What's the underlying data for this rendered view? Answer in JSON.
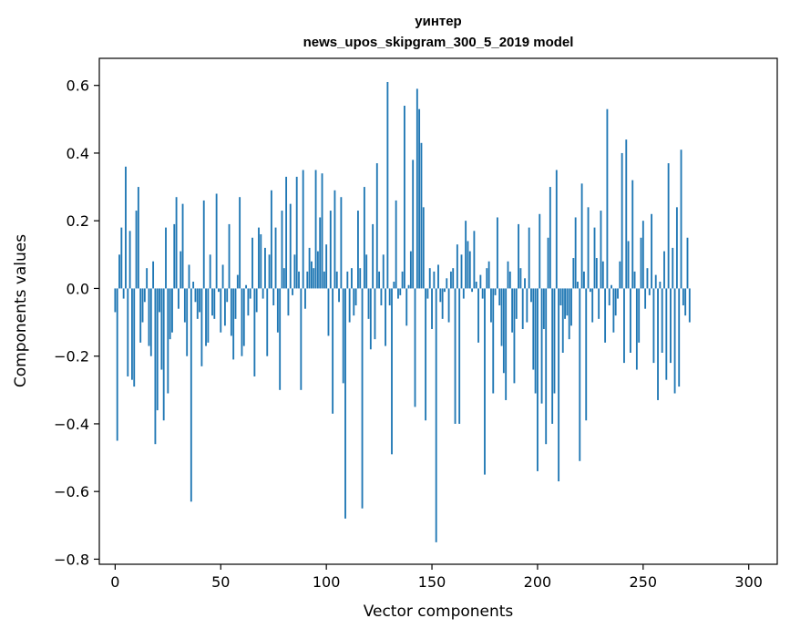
{
  "chart_data": {
    "type": "bar",
    "title_lines": [
      "уинтер",
      "news_upos_skipgram_300_5_2019 model"
    ],
    "xlabel": "Vector components",
    "ylabel": "Components values",
    "xlim": [
      -7.5,
      313.5
    ],
    "ylim": [
      -0.815,
      0.68
    ],
    "xticks": [
      0,
      50,
      100,
      150,
      200,
      250,
      300
    ],
    "yticks": [
      -0.8,
      -0.6,
      -0.4,
      -0.2,
      0.0,
      0.2,
      0.4,
      0.6
    ],
    "ytick_labels": [
      "−0.8",
      "−0.6",
      "−0.4",
      "−0.2",
      "0.0",
      "0.2",
      "0.4",
      "0.6"
    ],
    "xtick_labels": [
      "0",
      "50",
      "100",
      "150",
      "200",
      "250",
      "300"
    ],
    "bar_color": "#1f77b4",
    "values": [
      -0.07,
      -0.45,
      0.1,
      0.18,
      -0.03,
      0.36,
      -0.26,
      0.17,
      -0.27,
      -0.29,
      0.23,
      0.3,
      -0.16,
      -0.1,
      -0.04,
      0.06,
      -0.17,
      -0.2,
      0.08,
      -0.46,
      -0.36,
      -0.07,
      -0.24,
      -0.39,
      0.18,
      -0.31,
      -0.15,
      -0.13,
      0.19,
      0.27,
      -0.06,
      0.11,
      0.25,
      -0.1,
      -0.2,
      0.07,
      -0.63,
      0.02,
      -0.04,
      -0.09,
      -0.07,
      -0.23,
      0.26,
      -0.17,
      -0.16,
      0.1,
      -0.08,
      -0.09,
      0.28,
      -0.01,
      -0.13,
      0.07,
      -0.11,
      -0.04,
      0.19,
      -0.14,
      -0.21,
      -0.09,
      0.04,
      0.27,
      -0.2,
      -0.17,
      0.01,
      -0.08,
      -0.03,
      0.15,
      -0.26,
      -0.07,
      0.18,
      0.16,
      -0.03,
      0.12,
      -0.2,
      0.1,
      0.29,
      -0.05,
      0.18,
      -0.13,
      -0.3,
      0.23,
      0.06,
      0.33,
      -0.08,
      0.25,
      -0.02,
      0.1,
      0.33,
      0.05,
      -0.3,
      0.35,
      -0.06,
      0.05,
      0.12,
      0.08,
      0.06,
      0.35,
      0.11,
      0.21,
      0.34,
      0.05,
      0.13,
      -0.14,
      0.23,
      -0.37,
      0.29,
      0.05,
      -0.04,
      0.27,
      -0.28,
      -0.68,
      0.05,
      -0.1,
      0.06,
      -0.08,
      -0.05,
      0.23,
      0.06,
      -0.65,
      0.3,
      0.1,
      -0.09,
      -0.18,
      0.19,
      -0.15,
      0.37,
      0.05,
      -0.05,
      0.1,
      -0.17,
      0.61,
      -0.05,
      -0.49,
      0.02,
      0.26,
      -0.03,
      -0.02,
      0.05,
      0.54,
      -0.11,
      0.01,
      0.11,
      0.38,
      -0.35,
      0.59,
      0.53,
      0.43,
      0.24,
      -0.39,
      -0.03,
      0.06,
      -0.12,
      0.05,
      -0.75,
      0.07,
      -0.04,
      -0.09,
      -0.01,
      0.03,
      -0.1,
      0.05,
      0.06,
      -0.4,
      0.13,
      -0.4,
      0.1,
      -0.03,
      0.2,
      0.14,
      0.11,
      -0.01,
      0.17,
      0.02,
      -0.16,
      0.04,
      -0.03,
      -0.55,
      0.06,
      0.08,
      -0.1,
      -0.31,
      -0.02,
      0.21,
      -0.05,
      -0.17,
      -0.25,
      -0.33,
      0.08,
      0.05,
      -0.13,
      -0.28,
      -0.09,
      0.19,
      0.06,
      -0.12,
      0.03,
      -0.1,
      0.18,
      -0.04,
      -0.24,
      -0.31,
      -0.54,
      0.22,
      -0.34,
      -0.12,
      -0.46,
      0.15,
      0.3,
      -0.4,
      -0.31,
      0.35,
      -0.57,
      -0.05,
      -0.19,
      -0.09,
      -0.08,
      -0.15,
      -0.11,
      0.09,
      0.21,
      0.02,
      -0.51,
      0.31,
      0.05,
      -0.39,
      0.24,
      -0.01,
      -0.1,
      0.18,
      0.09,
      -0.09,
      0.23,
      0.08,
      -0.16,
      0.53,
      -0.05,
      0.01,
      -0.13,
      -0.08,
      -0.03,
      0.08,
      0.4,
      -0.22,
      0.44,
      0.14,
      -0.19,
      0.32,
      0.05,
      -0.24,
      -0.16,
      0.15,
      0.2,
      -0.06,
      0.06,
      -0.02,
      0.22,
      -0.22,
      0.04,
      -0.33,
      0.02,
      -0.19,
      0.11,
      -0.27,
      0.37,
      -0.22,
      0.12,
      -0.31,
      0.24,
      -0.29,
      0.41,
      -0.05,
      -0.08,
      0.15,
      -0.1
    ]
  }
}
